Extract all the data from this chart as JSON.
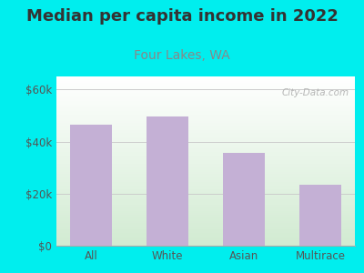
{
  "title": "Median per capita income in 2022",
  "subtitle": "Four Lakes, WA",
  "categories": [
    "All",
    "White",
    "Asian",
    "Multirace"
  ],
  "values": [
    46500,
    49500,
    35500,
    23500
  ],
  "bar_color": "#C4B0D5",
  "ylim": [
    0,
    65000
  ],
  "yticks": [
    0,
    20000,
    40000,
    60000
  ],
  "ytick_labels": [
    "$0",
    "$20k",
    "$40k",
    "$60k"
  ],
  "title_fontsize": 13,
  "subtitle_fontsize": 10,
  "subtitle_color": "#888888",
  "background_color": "#00EEEE",
  "watermark": "City-Data.com",
  "watermark_color": "#AAAAAA"
}
